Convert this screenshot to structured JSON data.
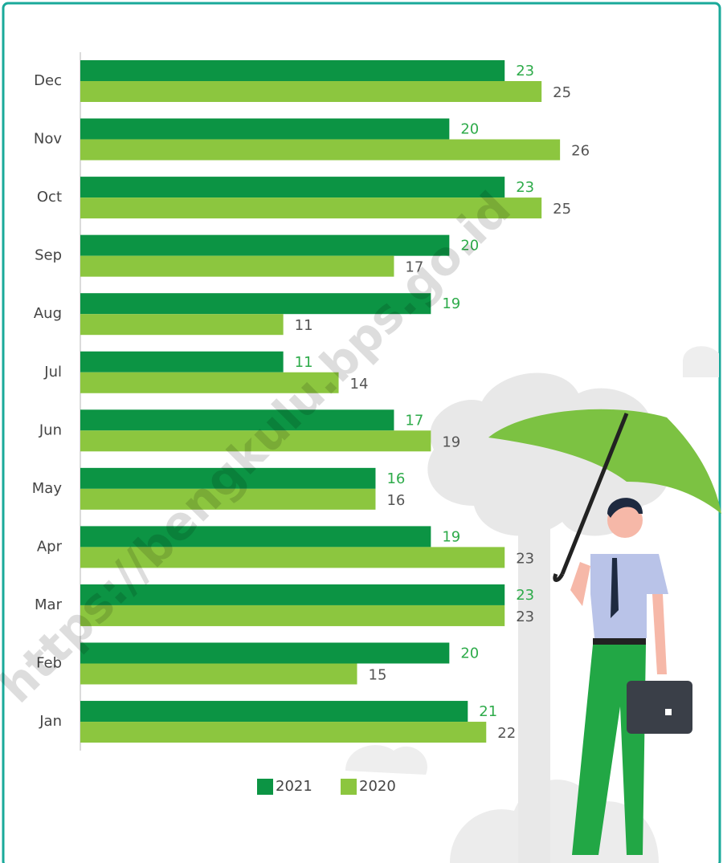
{
  "chart_data": {
    "type": "bar",
    "orientation": "horizontal",
    "categories": [
      "Dec",
      "Nov",
      "Oct",
      "Sep",
      "Aug",
      "Jul",
      "Jun",
      "May",
      "Apr",
      "Mar",
      "Feb",
      "Jan"
    ],
    "series": [
      {
        "name": "2021",
        "color": "#0c9444",
        "label_color": "#2eab4a",
        "values": [
          23,
          20,
          23,
          20,
          19,
          11,
          17,
          16,
          19,
          23,
          20,
          21
        ]
      },
      {
        "name": "2020",
        "color": "#8cc63f",
        "label_color": "#555555",
        "values": [
          25,
          26,
          25,
          17,
          11,
          14,
          19,
          16,
          23,
          23,
          15,
          22
        ]
      }
    ],
    "xlim": [
      0,
      30
    ],
    "watermark": "https://bengkulu.bps.go.id"
  }
}
